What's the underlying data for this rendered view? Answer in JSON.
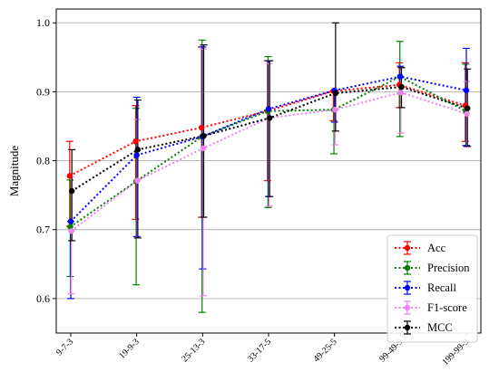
{
  "chart_data": {
    "type": "line",
    "ylabel": "Magnitude",
    "xlabel": "",
    "ylim": [
      0.55,
      1.02
    ],
    "yticks": [
      0.6,
      0.7,
      0.8,
      0.9,
      1.0
    ],
    "ytick_labels": [
      "0.6",
      "0.7",
      "0.8",
      "0.9",
      "1.0"
    ],
    "grid": "horizontal",
    "legend_position": "bottom-right",
    "categories": [
      "9-7-3",
      "19-9-3",
      "25-13-3",
      "33-17-5",
      "49-25-5",
      "99-49-9",
      "199-99-9"
    ],
    "series": [
      {
        "name": "Acc",
        "color": "#ff0000",
        "values": [
          0.778,
          0.828,
          0.848,
          0.872,
          0.901,
          0.91,
          0.88
        ],
        "err_low": [
          0.705,
          0.715,
          0.718,
          0.771,
          0.858,
          0.877,
          0.828
        ],
        "err_high": [
          0.828,
          0.88,
          0.965,
          0.945,
          0.901,
          0.942,
          0.942
        ]
      },
      {
        "name": "Precision",
        "color": "#008000",
        "values": [
          0.704,
          0.77,
          0.835,
          0.872,
          0.874,
          0.922,
          0.872
        ],
        "err_low": [
          0.632,
          0.62,
          0.58,
          0.732,
          0.81,
          0.835,
          0.822
        ],
        "err_high": [
          0.772,
          0.876,
          0.975,
          0.951,
          0.874,
          0.973,
          0.94
        ]
      },
      {
        "name": "Recall",
        "color": "#0000ff",
        "values": [
          0.712,
          0.808,
          0.835,
          0.875,
          0.902,
          0.922,
          0.902
        ],
        "err_low": [
          0.6,
          0.69,
          0.643,
          0.748,
          0.856,
          0.897,
          0.822
        ],
        "err_high": [
          0.712,
          0.892,
          0.965,
          0.945,
          0.902,
          0.937,
          0.963
        ]
      },
      {
        "name": "F1-score",
        "color": "#ee82ee",
        "values": [
          0.698,
          0.771,
          0.818,
          0.862,
          0.874,
          0.899,
          0.868
        ],
        "err_low": [
          0.607,
          0.688,
          0.604,
          0.734,
          0.823,
          0.84,
          0.82
        ],
        "err_high": [
          0.777,
          0.86,
          0.962,
          0.941,
          0.874,
          0.935,
          0.915
        ]
      },
      {
        "name": "MCC",
        "color": "#000000",
        "values": [
          0.756,
          0.816,
          0.836,
          0.862,
          0.898,
          0.907,
          0.876
        ],
        "err_low": [
          0.684,
          0.688,
          0.718,
          0.748,
          0.843,
          0.877,
          0.821
        ],
        "err_high": [
          0.816,
          0.888,
          0.968,
          0.945,
          1.0,
          0.935,
          0.933
        ]
      }
    ]
  }
}
